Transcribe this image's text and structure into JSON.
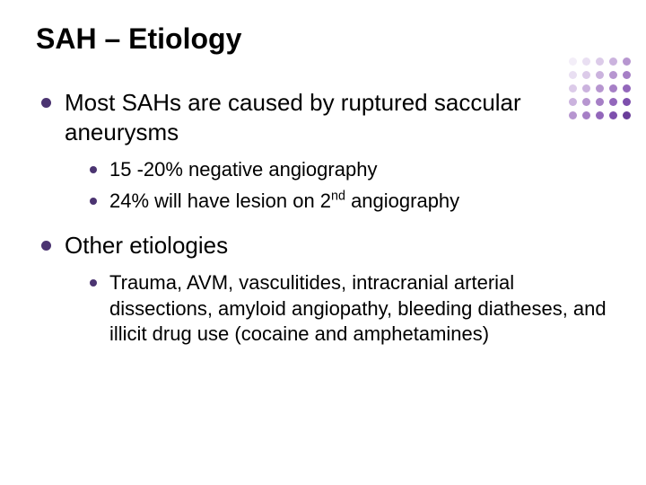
{
  "title": "SAH – Etiology",
  "bullets": {
    "b1": "Most SAHs are caused by ruptured saccular aneurysms",
    "b1_sub1": "15 -20% negative angiography",
    "b1_sub2_pre": "24% will have lesion on 2",
    "b1_sub2_sup": "nd",
    "b1_sub2_post": " angiography",
    "b2": "Other etiologies",
    "b2_sub1": "Trauma, AVM, vasculitides, intracranial arterial dissections, amyloid angiopathy, bleeding diatheses, and illicit drug use (cocaine and amphetamines)"
  },
  "decoration": {
    "dot_colors": [
      "#f3eef8",
      "#e9dff2",
      "#dccbe9",
      "#cbb3de",
      "#b796d0",
      "#e9dff2",
      "#dccbe9",
      "#cbb3de",
      "#b796d0",
      "#a67fc6",
      "#dccbe9",
      "#cbb3de",
      "#b796d0",
      "#a67fc6",
      "#9367bb",
      "#cbb3de",
      "#b796d0",
      "#a67fc6",
      "#9367bb",
      "#7e50ad",
      "#b796d0",
      "#a67fc6",
      "#9367bb",
      "#7e50ad",
      "#6a3d9a"
    ]
  }
}
